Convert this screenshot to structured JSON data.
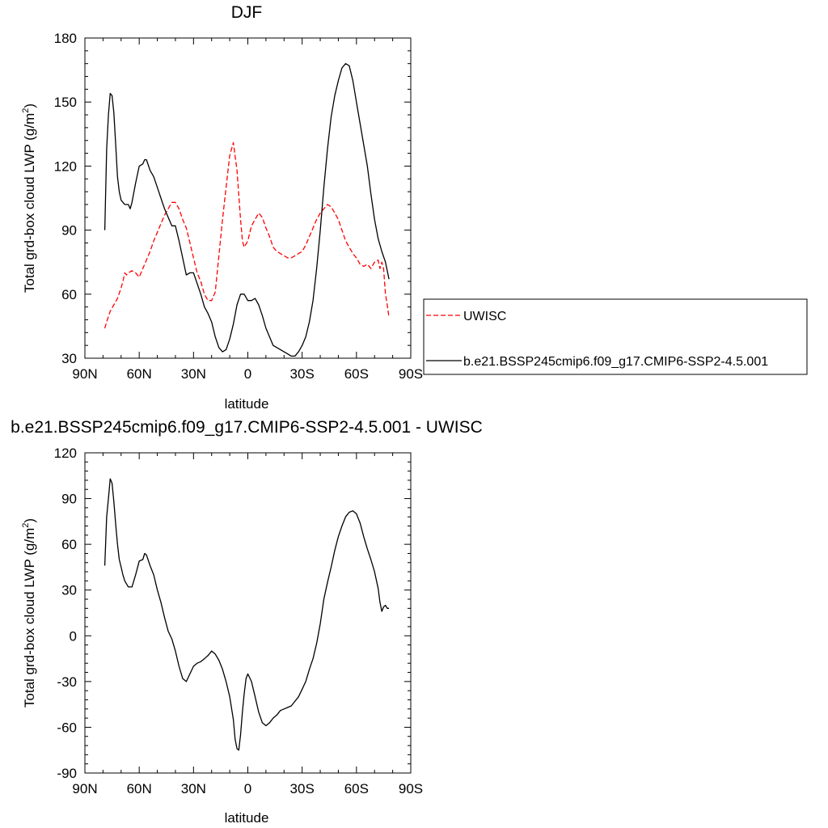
{
  "chart_data": [
    {
      "type": "line",
      "title": "DJF",
      "xlabel": "latitude",
      "ylabel": "Total grd-box cloud LWP (g/m²)",
      "ylabel_main": "Total grd-box cloud LWP (g/m",
      "ylabel_sup": "2",
      "ylabel_end": ")",
      "xlim": [
        90,
        -90
      ],
      "ylim": [
        30,
        180
      ],
      "xticks": [
        90,
        60,
        30,
        0,
        -30,
        -60,
        -90
      ],
      "xtick_labels": [
        "90N",
        "60N",
        "30N",
        "0",
        "30S",
        "60S",
        "90S"
      ],
      "yticks": [
        30,
        60,
        90,
        120,
        150,
        180
      ],
      "ytick_labels": [
        "30",
        "60",
        "90",
        "120",
        "150",
        "180"
      ],
      "legend_position": "right, outside plot",
      "grid": false,
      "series": [
        {
          "name": "UWISC",
          "color": "#ff0000",
          "dash": "dashed",
          "x": [
            79,
            78,
            76,
            74,
            72,
            70,
            69,
            68,
            67,
            66,
            64,
            62,
            60,
            58,
            56,
            54,
            52,
            50,
            48,
            46,
            44,
            42,
            40,
            38,
            36,
            34,
            32,
            30,
            28,
            26,
            24,
            22,
            20,
            18,
            16,
            14,
            12,
            10,
            8,
            6,
            4,
            3,
            2,
            0,
            -2,
            -4,
            -6,
            -8,
            -10,
            -12,
            -14,
            -16,
            -18,
            -20,
            -22,
            -24,
            -26,
            -28,
            -30,
            -32,
            -34,
            -36,
            -38,
            -40,
            -42,
            -44,
            -46,
            -48,
            -50,
            -52,
            -54,
            -56,
            -58,
            -60,
            -62,
            -64,
            -66,
            -68,
            -70,
            -72,
            -73,
            -74,
            -75,
            -76,
            -77,
            -78
          ],
          "y": [
            44,
            47,
            52,
            55,
            58,
            63,
            66,
            70,
            69,
            70,
            71,
            70,
            68,
            72,
            76,
            80,
            85,
            89,
            93,
            97,
            100,
            103,
            103,
            100,
            95,
            91,
            84,
            77,
            70,
            66,
            60,
            57,
            57,
            61,
            78,
            95,
            110,
            125,
            131,
            118,
            95,
            85,
            82,
            85,
            92,
            95,
            98,
            96,
            91,
            87,
            82,
            80,
            79,
            78,
            77,
            77,
            78,
            79,
            80,
            83,
            87,
            91,
            95,
            98,
            100,
            102,
            101,
            98,
            95,
            90,
            85,
            82,
            79,
            77,
            74,
            73,
            74,
            72,
            75,
            76,
            72,
            75,
            72,
            60,
            55,
            49
          ]
        },
        {
          "name": "b.e21.BSSP245cmip6.f09_g17.CMIP6-SSP2-4.5.001",
          "color": "#000000",
          "dash": "solid",
          "x": [
            79,
            78,
            77,
            76,
            75,
            74,
            73,
            72,
            71,
            70,
            68,
            66,
            65,
            64,
            62,
            60,
            58,
            57,
            56,
            54,
            52,
            50,
            48,
            46,
            44,
            42,
            40,
            38,
            36,
            34,
            32,
            30,
            28,
            26,
            24,
            22,
            20,
            18,
            16,
            14,
            12,
            10,
            8,
            6,
            4,
            2,
            0,
            -2,
            -4,
            -6,
            -8,
            -10,
            -12,
            -14,
            -16,
            -18,
            -20,
            -22,
            -24,
            -26,
            -28,
            -30,
            -32,
            -34,
            -36,
            -38,
            -40,
            -42,
            -44,
            -46,
            -48,
            -50,
            -52,
            -54,
            -56,
            -58,
            -60,
            -62,
            -64,
            -66,
            -68,
            -70,
            -72,
            -74,
            -76,
            -77,
            -78
          ],
          "y": [
            90,
            128,
            144,
            154,
            153,
            145,
            130,
            115,
            108,
            104,
            102,
            102,
            100,
            103,
            112,
            120,
            121,
            123,
            123,
            118,
            115,
            110,
            105,
            100,
            96,
            92,
            92,
            85,
            77,
            69,
            70,
            70,
            65,
            60,
            54,
            51,
            47,
            40,
            35,
            33,
            34,
            39,
            46,
            55,
            60,
            60,
            57,
            57,
            58,
            55,
            50,
            44,
            40,
            36,
            35,
            34,
            33,
            32,
            31,
            31,
            33,
            36,
            40,
            47,
            57,
            72,
            90,
            110,
            128,
            143,
            153,
            160,
            166,
            168,
            167,
            160,
            150,
            140,
            130,
            120,
            107,
            95,
            86,
            80,
            75,
            71,
            67
          ]
        }
      ]
    },
    {
      "type": "line",
      "title": "b.e21.BSSP245cmip6.f09_g17.CMIP6-SSP2-4.5.001 - UWISC",
      "xlabel": "latitude",
      "ylabel": "Total grd-box cloud LWP (g/m²)",
      "ylabel_main": "Total grd-box cloud LWP (g/m",
      "ylabel_sup": "2",
      "ylabel_end": ")",
      "xlim": [
        90,
        -90
      ],
      "ylim": [
        -90,
        120
      ],
      "xticks": [
        90,
        60,
        30,
        0,
        -30,
        -60,
        -90
      ],
      "xtick_labels": [
        "90N",
        "60N",
        "30N",
        "0",
        "30S",
        "60S",
        "90S"
      ],
      "yticks": [
        -90,
        -60,
        -30,
        0,
        30,
        60,
        90,
        120
      ],
      "ytick_labels": [
        "-90",
        "-60",
        "-30",
        "0",
        "30",
        "60",
        "90",
        "120"
      ],
      "grid": false,
      "series": [
        {
          "color": "#000000",
          "dash": "solid",
          "x": [
            79,
            78,
            77,
            76,
            75,
            74,
            73,
            72,
            71,
            70,
            69,
            68,
            67,
            66,
            64,
            62,
            60,
            58,
            57,
            56,
            54,
            52,
            50,
            48,
            46,
            44,
            42,
            40,
            38,
            36,
            34,
            32,
            30,
            28,
            26,
            24,
            22,
            20,
            18,
            16,
            14,
            12,
            10,
            8,
            7,
            6,
            5,
            4,
            3,
            2,
            1,
            0,
            -2,
            -4,
            -6,
            -8,
            -10,
            -12,
            -14,
            -16,
            -18,
            -20,
            -22,
            -24,
            -26,
            -28,
            -30,
            -32,
            -34,
            -36,
            -38,
            -40,
            -42,
            -44,
            -46,
            -48,
            -50,
            -52,
            -54,
            -56,
            -58,
            -60,
            -62,
            -64,
            -66,
            -68,
            -70,
            -72,
            -73,
            -74,
            -75,
            -76,
            -77,
            -78
          ],
          "y": [
            46,
            78,
            90,
            103,
            100,
            88,
            73,
            60,
            50,
            45,
            40,
            36,
            34,
            32,
            32,
            40,
            49,
            50,
            54,
            53,
            46,
            40,
            30,
            22,
            12,
            3,
            -2,
            -10,
            -20,
            -28,
            -30,
            -25,
            -20,
            -18,
            -17,
            -15,
            -13,
            -10,
            -12,
            -16,
            -22,
            -30,
            -40,
            -55,
            -68,
            -74,
            -75,
            -65,
            -50,
            -38,
            -28,
            -25,
            -30,
            -40,
            -50,
            -57,
            -59,
            -57,
            -54,
            -52,
            -49,
            -48,
            -47,
            -46,
            -43,
            -40,
            -35,
            -30,
            -22,
            -15,
            -5,
            8,
            24,
            35,
            45,
            56,
            65,
            72,
            78,
            81,
            82,
            80,
            74,
            65,
            57,
            50,
            42,
            31,
            22,
            16,
            19,
            20,
            18,
            18
          ]
        }
      ]
    }
  ]
}
